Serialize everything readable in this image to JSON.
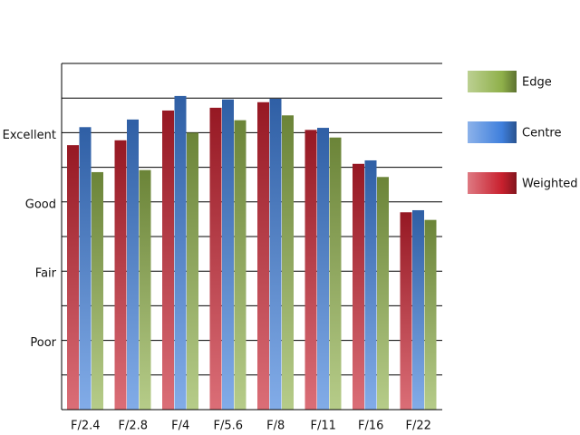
{
  "chart_data": {
    "type": "bar",
    "categories": [
      "F/2.4",
      "F/2.8",
      "F/4",
      "F/5.6",
      "F/8",
      "F/11",
      "F/16",
      "F/22"
    ],
    "series": [
      {
        "name": "Edge",
        "color": "#8fb04a",
        "values": [
          3.43,
          3.46,
          4.0,
          4.18,
          4.25,
          3.93,
          3.36,
          2.74
        ]
      },
      {
        "name": "Centre",
        "color": "#3f7fdc",
        "values": [
          4.08,
          4.19,
          4.53,
          4.48,
          4.49,
          4.07,
          3.6,
          2.88
        ]
      },
      {
        "name": "Weighted",
        "color": "#c8202e",
        "values": [
          3.82,
          3.89,
          4.32,
          4.36,
          4.44,
          4.04,
          3.55,
          2.85
        ]
      }
    ],
    "ylim": [
      0,
      5
    ],
    "yticks": [
      {
        "value": 1,
        "label": "Poor"
      },
      {
        "value": 2,
        "label": "Fair"
      },
      {
        "value": 3,
        "label": "Good"
      },
      {
        "value": 4,
        "label": "Excellent"
      }
    ],
    "minor_yticks": [
      0.5,
      1.5,
      2.5,
      3.5,
      4.5,
      5
    ],
    "grid": true,
    "legend": "right"
  }
}
